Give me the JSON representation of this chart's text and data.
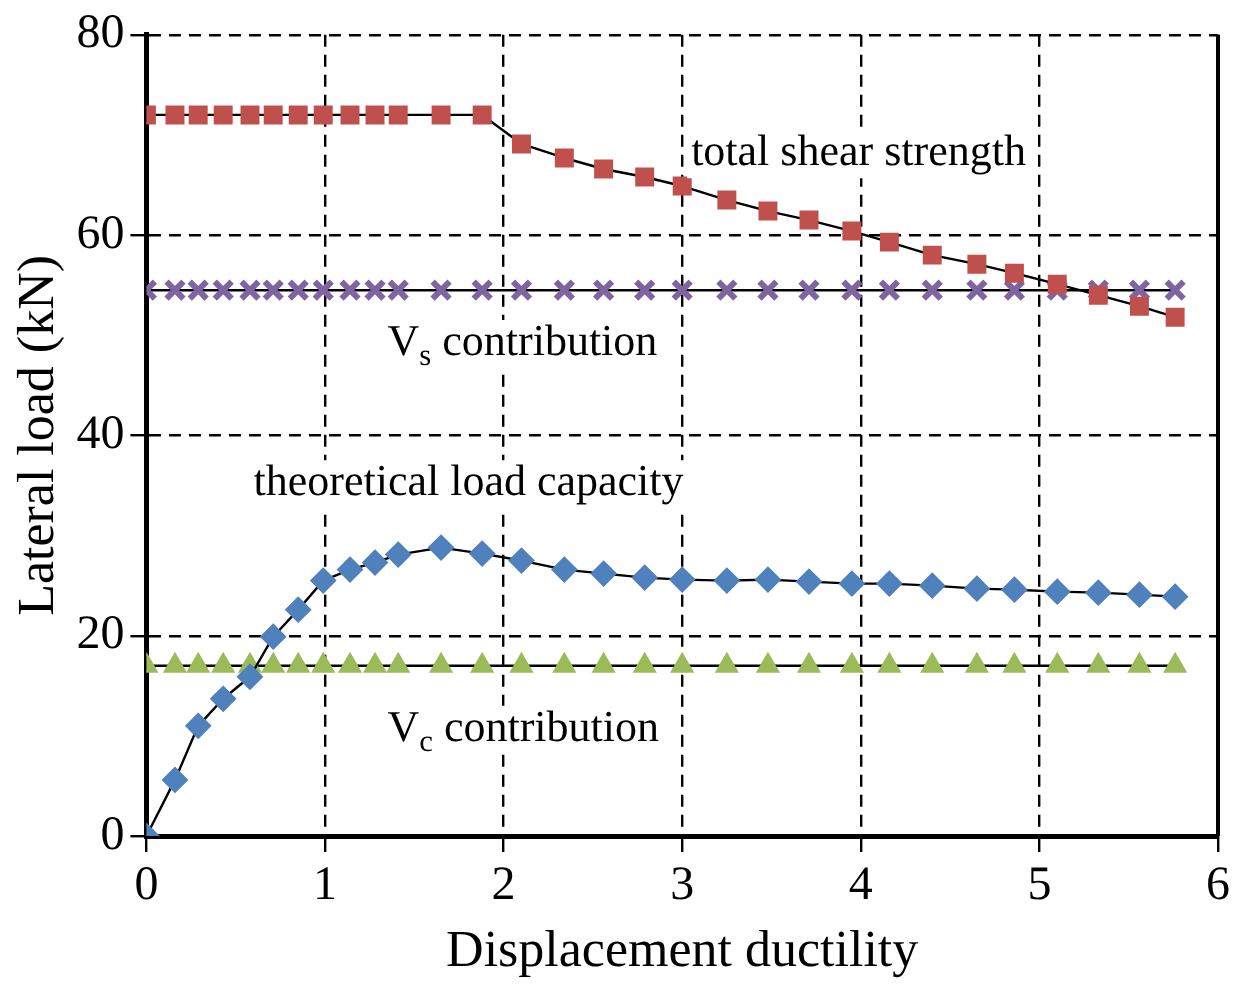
{
  "chart_data": {
    "type": "line",
    "xlabel": "Displacement ductility",
    "ylabel": "Lateral load (kN)",
    "x": [
      0,
      0.16,
      0.29,
      0.43,
      0.58,
      0.71,
      0.85,
      0.99,
      1.14,
      1.28,
      1.41,
      1.65,
      1.88,
      2.1,
      2.34,
      2.56,
      2.79,
      3.0,
      3.25,
      3.48,
      3.71,
      3.95,
      4.16,
      4.4,
      4.65,
      4.86,
      5.1,
      5.33,
      5.56,
      5.76
    ],
    "xlim": [
      0,
      6
    ],
    "xticks": [
      0,
      1,
      2,
      3,
      4,
      5,
      6
    ],
    "ylim": [
      0,
      80
    ],
    "yticks": [
      0,
      20,
      40,
      60,
      80
    ],
    "grid": true,
    "line_style": "solid",
    "series": [
      {
        "name": "total shear strength",
        "color": "#c0504d",
        "marker": "square",
        "values": [
          72,
          72,
          72,
          72,
          72,
          72,
          72,
          72,
          72,
          72,
          72,
          72,
          72,
          69.1,
          67.7,
          66.6,
          65.8,
          64.9,
          63.5,
          62.4,
          61.5,
          60.4,
          59.3,
          58.0,
          57.1,
          56.2,
          55.1,
          54.0,
          52.9,
          51.8
        ]
      },
      {
        "name": "V$_{s}$ contribution",
        "color": "#8064a2",
        "marker": "cross",
        "values": [
          54.5,
          54.5,
          54.5,
          54.5,
          54.5,
          54.5,
          54.5,
          54.5,
          54.5,
          54.5,
          54.5,
          54.5,
          54.5,
          54.5,
          54.5,
          54.5,
          54.5,
          54.5,
          54.5,
          54.5,
          54.5,
          54.5,
          54.5,
          54.5,
          54.5,
          54.5,
          54.5,
          54.5,
          54.5,
          54.5
        ]
      },
      {
        "name": "theoretical load capacity",
        "color": "#4f81bd",
        "marker": "diamond",
        "values": [
          0,
          5.6,
          11,
          13.7,
          15.9,
          19.9,
          22.6,
          25.5,
          26.6,
          27.3,
          28.1,
          28.8,
          28.2,
          27.5,
          26.6,
          26.2,
          25.8,
          25.6,
          25.5,
          25.6,
          25.4,
          25.2,
          25.2,
          25.0,
          24.7,
          24.6,
          24.4,
          24.3,
          24.1,
          23.9
        ]
      },
      {
        "name": "V$_{c}$ contribution",
        "color": "#9bbb59",
        "marker": "triangle",
        "values": [
          17,
          17,
          17,
          17,
          17,
          17,
          17,
          17,
          17,
          17,
          17,
          17,
          17,
          17,
          17,
          17,
          17,
          17,
          17,
          17,
          17,
          17,
          17,
          17,
          17,
          17,
          17,
          17,
          17,
          17
        ]
      }
    ]
  }
}
